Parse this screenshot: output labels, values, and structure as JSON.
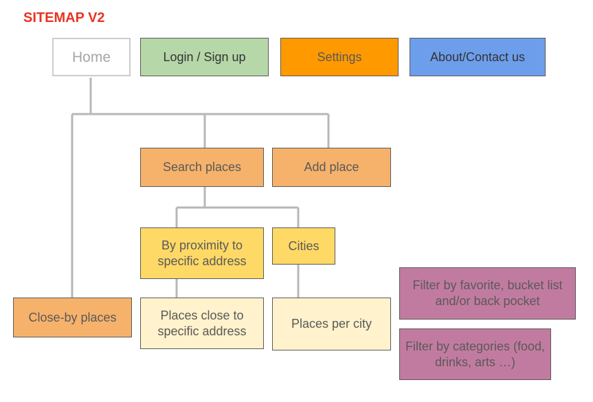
{
  "title": "SITEMAP V2",
  "nodes": {
    "home": "Home",
    "login": "Login / Sign up",
    "settings": "Settings",
    "about": "About/Contact us",
    "search_places": "Search places",
    "add_place": "Add place",
    "by_proximity": "By proximity to specific address",
    "cities": "Cities",
    "close_by_places": "Close-by places",
    "places_close_to": "Places close to specific address",
    "places_per_city": "Places per city",
    "filter_favorite": "Filter by favorite, bucket list and/or back pocket",
    "filter_categories": "Filter by categories (food, drinks, arts …)"
  },
  "colors": {
    "title": "#ea3323",
    "connector": "#b7b7b7",
    "login": "#b6d7a8",
    "settings": "#ff9900",
    "about": "#6d9eeb",
    "orange_light": "#f6b26b",
    "yellow": "#ffd966",
    "cream": "#fff2cc",
    "purple": "#c27ba0"
  }
}
